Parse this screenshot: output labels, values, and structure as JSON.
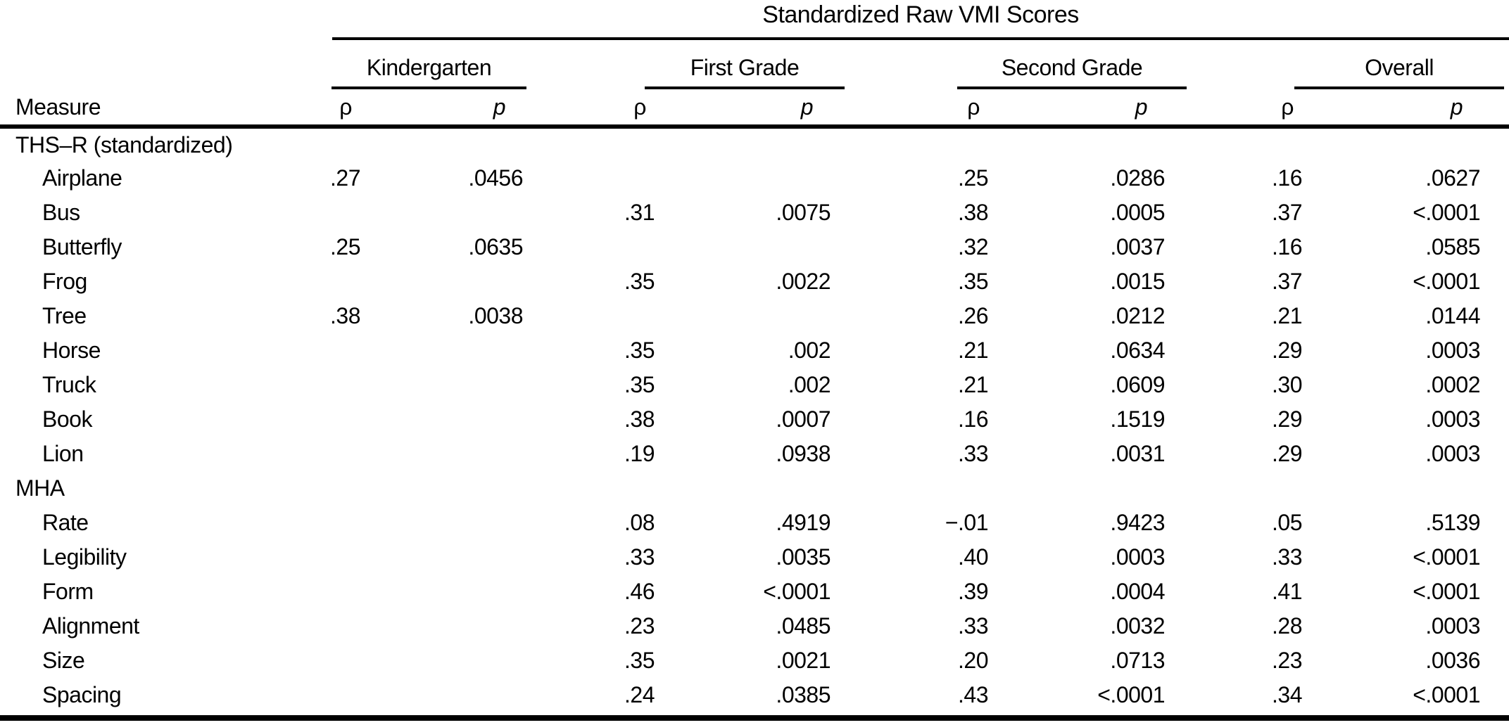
{
  "colors": {
    "background": "#ffffff",
    "text": "#000000",
    "rule": "#000000"
  },
  "table": {
    "title": "Standardized Raw VMI Scores",
    "measure_header": "Measure",
    "groups": [
      {
        "label": "Kindergarten"
      },
      {
        "label": "First Grade"
      },
      {
        "label": "Second Grade"
      },
      {
        "label": "Overall"
      }
    ],
    "columns": {
      "rho": "ρ",
      "p": "p"
    },
    "rows": [
      {
        "type": "section",
        "label": "THS–R (standardized)",
        "values": [
          "",
          "",
          "",
          "",
          "",
          "",
          "",
          ""
        ]
      },
      {
        "type": "item",
        "label": "Airplane",
        "values": [
          ".27",
          ".0456",
          "",
          "",
          ".25",
          ".0286",
          ".16",
          ".0627"
        ]
      },
      {
        "type": "item",
        "label": "Bus",
        "values": [
          "",
          "",
          ".31",
          ".0075",
          ".38",
          ".0005",
          ".37",
          "<.0001"
        ]
      },
      {
        "type": "item",
        "label": "Butterfly",
        "values": [
          ".25",
          ".0635",
          "",
          "",
          ".32",
          ".0037",
          ".16",
          ".0585"
        ]
      },
      {
        "type": "item",
        "label": "Frog",
        "values": [
          "",
          "",
          ".35",
          ".0022",
          ".35",
          ".0015",
          ".37",
          "<.0001"
        ]
      },
      {
        "type": "item",
        "label": "Tree",
        "values": [
          ".38",
          ".0038",
          "",
          "",
          ".26",
          ".0212",
          ".21",
          ".0144"
        ]
      },
      {
        "type": "item",
        "label": "Horse",
        "values": [
          "",
          "",
          ".35",
          ".002",
          ".21",
          ".0634",
          ".29",
          ".0003"
        ]
      },
      {
        "type": "item",
        "label": "Truck",
        "values": [
          "",
          "",
          ".35",
          ".002",
          ".21",
          ".0609",
          ".30",
          ".0002"
        ]
      },
      {
        "type": "item",
        "label": "Book",
        "values": [
          "",
          "",
          ".38",
          ".0007",
          ".16",
          ".1519",
          ".29",
          ".0003"
        ]
      },
      {
        "type": "item",
        "label": "Lion",
        "values": [
          "",
          "",
          ".19",
          ".0938",
          ".33",
          ".0031",
          ".29",
          ".0003"
        ]
      },
      {
        "type": "section",
        "label": "MHA",
        "values": [
          "",
          "",
          "",
          "",
          "",
          "",
          "",
          ""
        ]
      },
      {
        "type": "item",
        "label": "Rate",
        "values": [
          "",
          "",
          ".08",
          ".4919",
          "−.01",
          ".9423",
          ".05",
          ".5139"
        ]
      },
      {
        "type": "item",
        "label": "Legibility",
        "values": [
          "",
          "",
          ".33",
          ".0035",
          ".40",
          ".0003",
          ".33",
          "<.0001"
        ]
      },
      {
        "type": "item",
        "label": "Form",
        "values": [
          "",
          "",
          ".46",
          "<.0001",
          ".39",
          ".0004",
          ".41",
          "<.0001"
        ]
      },
      {
        "type": "item",
        "label": "Alignment",
        "values": [
          "",
          "",
          ".23",
          ".0485",
          ".33",
          ".0032",
          ".28",
          ".0003"
        ]
      },
      {
        "type": "item",
        "label": "Size",
        "values": [
          "",
          "",
          ".35",
          ".0021",
          ".20",
          ".0713",
          ".23",
          ".0036"
        ]
      },
      {
        "type": "item",
        "label": "Spacing",
        "values": [
          "",
          "",
          ".24",
          ".0385",
          ".43",
          "<.0001",
          ".34",
          "<.0001"
        ]
      }
    ]
  }
}
